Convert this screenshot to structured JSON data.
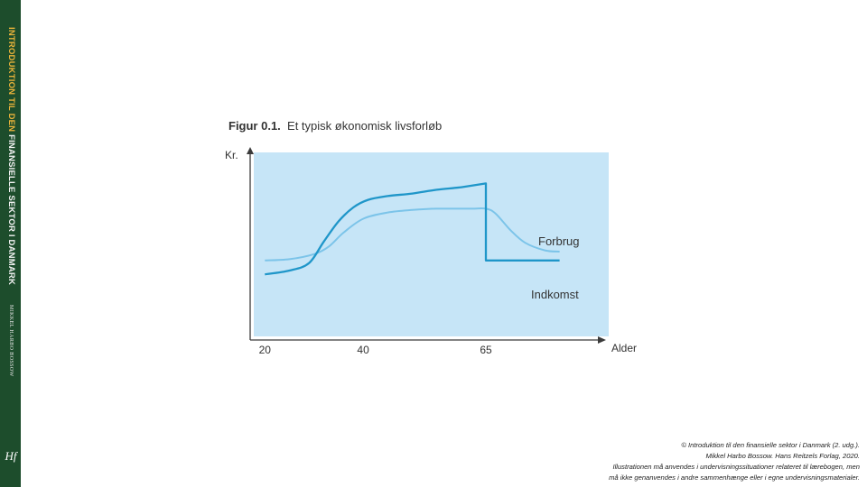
{
  "spine": {
    "title_part1": "INTRODUKTION TIL DEN",
    "title_part2": "FINANSIELLE SEKTOR I DANMARK",
    "author": "MIKKEL HARBO BOSSOW",
    "logo": "Hf"
  },
  "figure": {
    "label": "Figur 0.1.",
    "title": "Et typisk økonomisk livsforløb"
  },
  "chart_data": {
    "type": "line",
    "ylabel": "Kr.",
    "xlabel": "Alder",
    "x_ticks": [
      20,
      40,
      65
    ],
    "xlim": [
      17,
      90
    ],
    "ylim": [
      0,
      100
    ],
    "grid": false,
    "background_color": "#c6e5f7",
    "series": [
      {
        "name": "Forbrug",
        "color": "#7cc4e9",
        "points": [
          [
            20,
            33
          ],
          [
            25,
            34
          ],
          [
            30,
            38
          ],
          [
            33,
            44
          ],
          [
            36,
            55
          ],
          [
            40,
            66
          ],
          [
            45,
            71
          ],
          [
            50,
            73
          ],
          [
            55,
            74
          ],
          [
            62,
            74
          ],
          [
            65,
            74
          ],
          [
            67,
            70
          ],
          [
            70,
            57
          ],
          [
            73,
            47
          ],
          [
            77,
            41
          ],
          [
            80,
            40
          ]
        ]
      },
      {
        "name": "Indkomst",
        "color": "#1f96c9",
        "points": [
          [
            20,
            22
          ],
          [
            25,
            25
          ],
          [
            29,
            31
          ],
          [
            32,
            48
          ],
          [
            35,
            64
          ],
          [
            38,
            75
          ],
          [
            41,
            81
          ],
          [
            45,
            84
          ],
          [
            50,
            86
          ],
          [
            55,
            89
          ],
          [
            60,
            91
          ],
          [
            65,
            94
          ],
          [
            65,
            33
          ],
          [
            80,
            33
          ]
        ]
      }
    ]
  },
  "copyright": {
    "line1": "© Introduktion til den finansielle sektor i Danmark (2. udg.).",
    "line2": "Mikkel Harbo Bossow. Hans Reitzels Forlag, 2020.",
    "line3": "Illustrationen må anvendes i undervisningssituationer relateret til lærebogen, men",
    "line4": "må ikke genanvendes i andre sammenhænge eller i egne undervisningsmaterialer."
  }
}
